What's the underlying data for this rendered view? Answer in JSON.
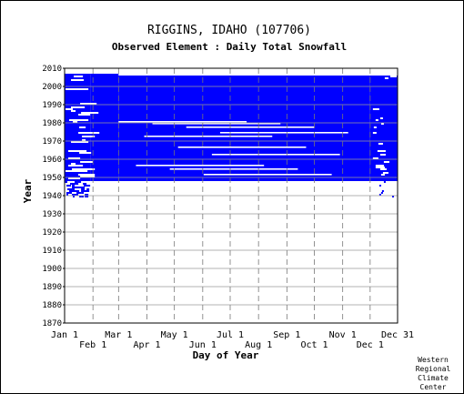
{
  "chart_data": {
    "type": "heatmap",
    "title": "RIGGINS, IDAHO   (107706)",
    "subtitle": "Observed Element : Daily Total Snowfall",
    "xlabel": "Day of Year",
    "ylabel": "Year",
    "xlim": [
      1,
      365
    ],
    "ylim": [
      1870,
      2010
    ],
    "y_ticks": [
      1870,
      1880,
      1890,
      1900,
      1910,
      1920,
      1930,
      1940,
      1950,
      1960,
      1970,
      1980,
      1990,
      2000,
      2010
    ],
    "x_ticks_top_row": [
      {
        "label": "Jan 1",
        "day": 1
      },
      {
        "label": "Mar 1",
        "day": 60
      },
      {
        "label": "May 1",
        "day": 121
      },
      {
        "label": "Jul 1",
        "day": 182
      },
      {
        "label": "Sep 1",
        "day": 244
      },
      {
        "label": "Nov 1",
        "day": 305
      },
      {
        "label": "Dec 31",
        "day": 365
      }
    ],
    "x_ticks_bottom_row": [
      {
        "label": "Feb 1",
        "day": 32
      },
      {
        "label": "Apr 1",
        "day": 91
      },
      {
        "label": "Jun 1",
        "day": 152
      },
      {
        "label": "Aug 1",
        "day": 213
      },
      {
        "label": "Oct 1",
        "day": 274
      },
      {
        "label": "Dec 1",
        "day": 335
      }
    ],
    "data_color": "#0000ff",
    "grid": true,
    "coverage": [
      {
        "year_start": 1948,
        "year_end": 2006,
        "day_start": 1,
        "day_end": 29,
        "description": "data present, with gaps"
      },
      {
        "year_start": 1948,
        "year_end": 2006,
        "day_start": 29,
        "day_end": 60,
        "description": "data present, with gaps"
      },
      {
        "year_start": 1948,
        "year_end": 2005,
        "day_start": 60,
        "day_end": 335,
        "description": "data present"
      },
      {
        "year_start": 1948,
        "year_end": 2005,
        "day_start": 335,
        "day_end": 365,
        "description": "data present, with gaps"
      }
    ],
    "missing_years": [
      1981,
      1980,
      1978,
      1975,
      1973,
      1967,
      1963,
      1957,
      1955,
      1952
    ],
    "sparse_years": [
      1939,
      1940,
      1941,
      1942,
      1943,
      1944,
      1945,
      1946,
      1947
    ]
  },
  "credit": [
    "Western",
    "Regional",
    "Climate",
    "Center"
  ]
}
